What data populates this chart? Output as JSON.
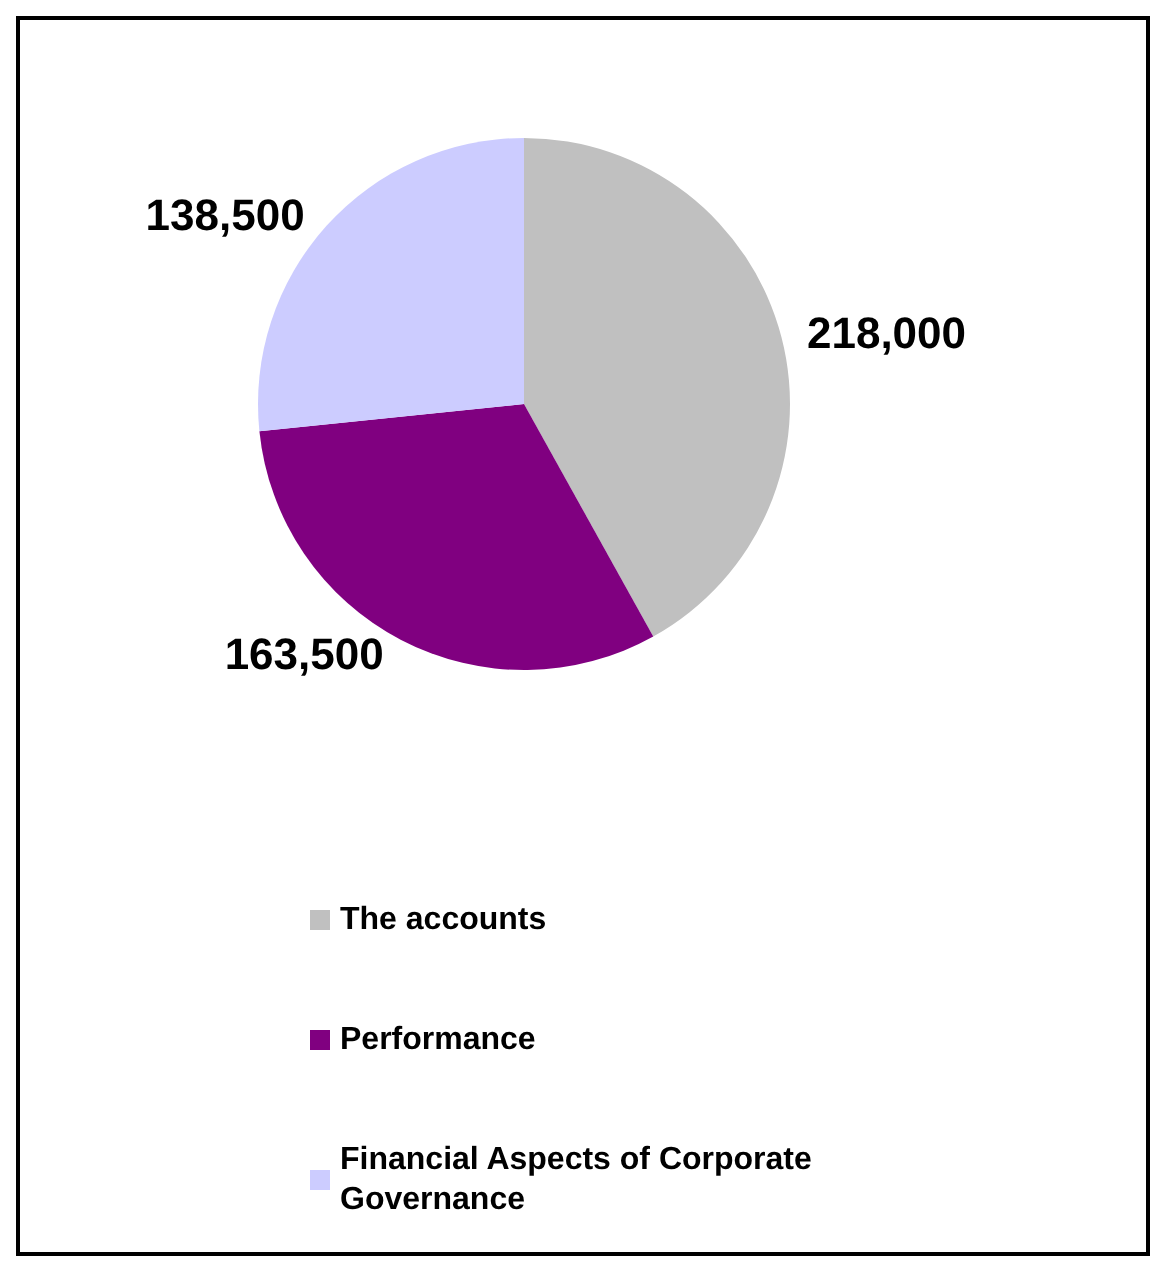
{
  "chart_data": {
    "type": "pie",
    "categories": [
      "The accounts",
      "Performance",
      "Financial Aspects of Corporate Governance"
    ],
    "values": [
      218000,
      163500,
      138500
    ],
    "value_labels": [
      "218,000",
      "163,500",
      "138,500"
    ],
    "colors": [
      "#c0c0c0",
      "#800080",
      "#ccccff"
    ],
    "legend": "bottom"
  }
}
